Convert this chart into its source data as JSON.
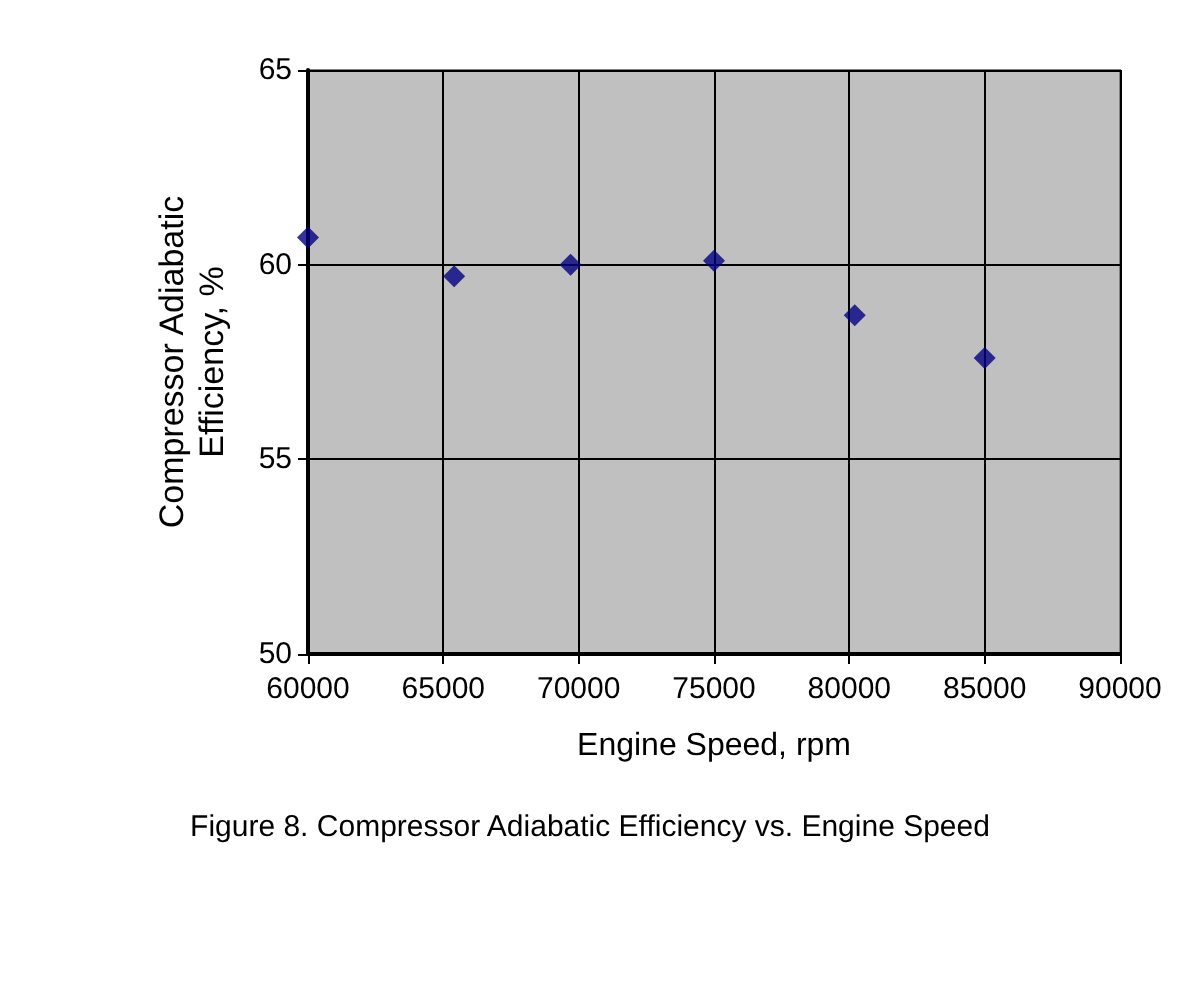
{
  "chart_data": {
    "type": "scatter",
    "xlabel": "Engine Speed, rpm",
    "ylabel": "Compressor Adiabatic\nEfficiency, %",
    "annotations": [
      "Figure 8. Compressor Adiabatic Efficiency vs. Engine Speed"
    ],
    "x": [
      60000,
      65400,
      69700,
      75000,
      80200,
      85000
    ],
    "series": [
      {
        "color": "#000080",
        "values": [
          60.7,
          59.7,
          60.0,
          60.1,
          58.7,
          57.6
        ]
      }
    ],
    "xlim": [
      60000,
      90000
    ],
    "xticks": [
      60000,
      65000,
      70000,
      75000,
      80000,
      85000,
      90000
    ],
    "ylim": [
      50,
      65
    ],
    "yticks": [
      50,
      55,
      60,
      65
    ],
    "grid": true,
    "marker": "diamond"
  }
}
